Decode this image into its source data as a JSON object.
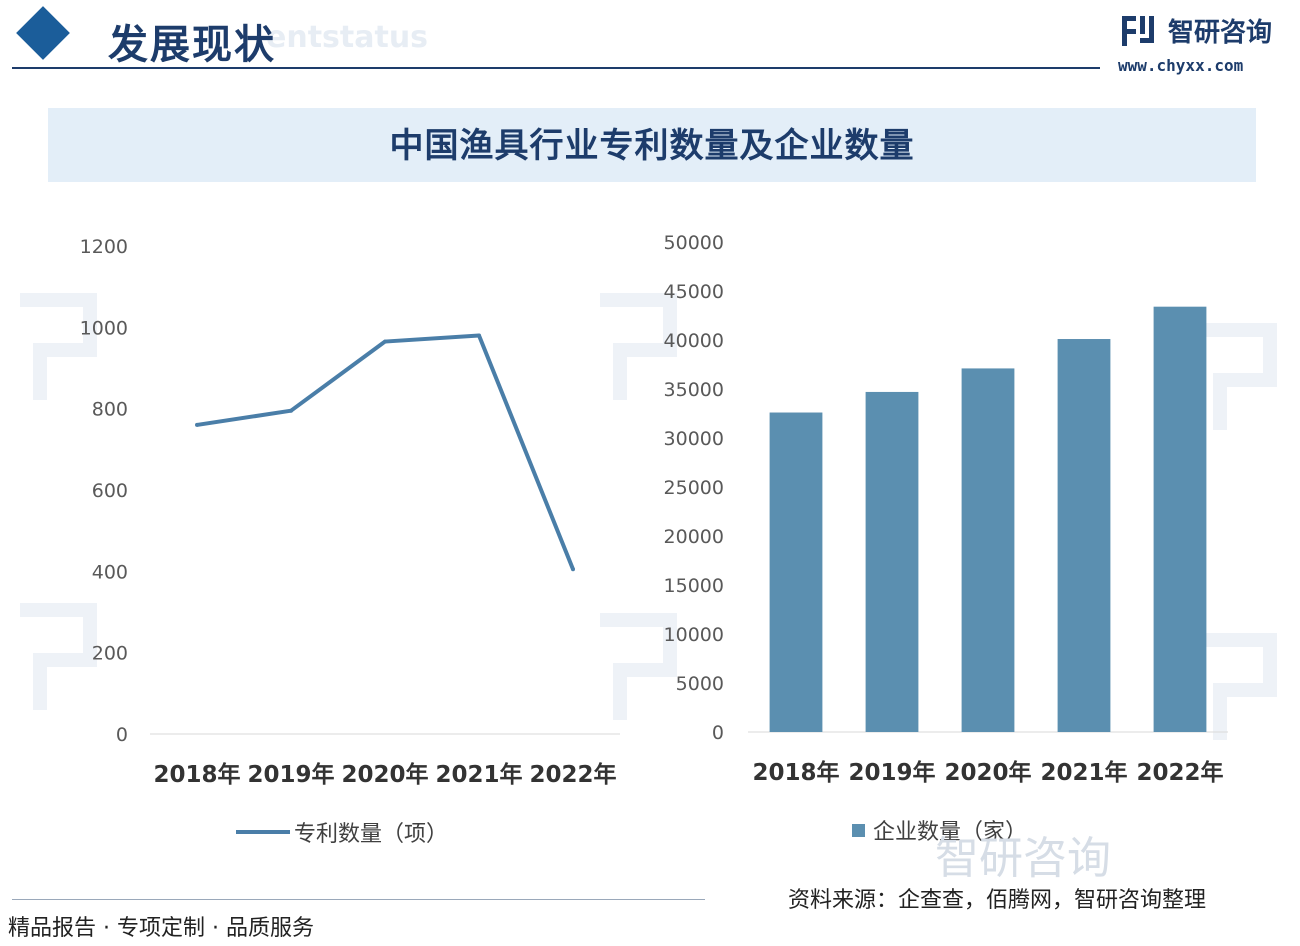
{
  "header": {
    "section_title": "发展现状",
    "ghost_text": "entstatus",
    "brand_name": "智研咨询",
    "brand_url": "www.chyxx.com"
  },
  "chart_title": "中国渔具行业专利数量及企业数量",
  "chart_data": [
    {
      "type": "line",
      "categories": [
        "2018年",
        "2019年",
        "2020年",
        "2021年",
        "2022年"
      ],
      "series": [
        {
          "name": "专利数量（项）",
          "values": [
            760,
            795,
            965,
            980,
            405
          ]
        }
      ],
      "ylim": [
        0,
        1200
      ],
      "yticks": [
        0,
        200,
        400,
        600,
        800,
        1000,
        1200
      ],
      "grid": false,
      "legend": "bottom",
      "color": "#4a7ea8"
    },
    {
      "type": "bar",
      "categories": [
        "2018年",
        "2019年",
        "2020年",
        "2021年",
        "2022年"
      ],
      "series": [
        {
          "name": "企业数量（家）",
          "values": [
            32600,
            34700,
            37100,
            40100,
            43400
          ]
        }
      ],
      "ylim": [
        0,
        50000
      ],
      "yticks": [
        0,
        5000,
        10000,
        15000,
        20000,
        25000,
        30000,
        35000,
        40000,
        45000,
        50000
      ],
      "grid": false,
      "legend": "bottom",
      "color": "#5b8fb0"
    }
  ],
  "footer": {
    "slogan": "精品报告 · 专项定制 · 品质服务",
    "source": "资料来源：企查查，佰腾网，智研咨询整理",
    "watermark": "智研咨询"
  }
}
